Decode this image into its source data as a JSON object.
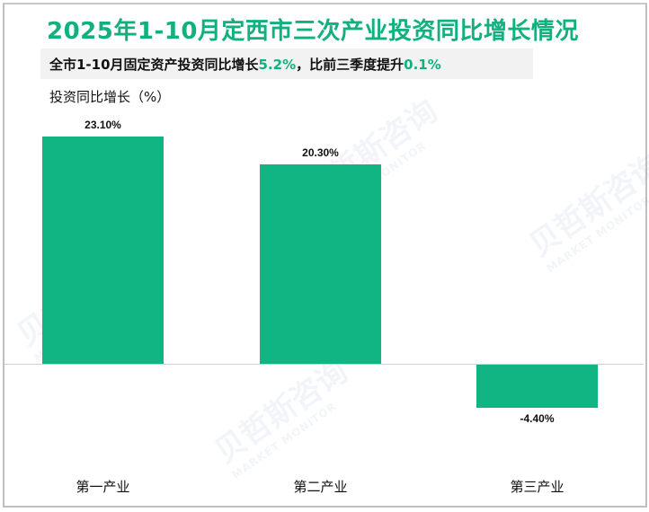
{
  "title": "2025年1-10月定西市三次产业投资同比增长情况",
  "subtitle": {
    "prefix": "全市1-10月固定资产投资同比增长",
    "value1": "5.2%",
    "middle": "，比前三季度提升",
    "value2": "0.1%"
  },
  "y_axis_label": "投资同比增长（%）",
  "watermark": {
    "cn": "贝哲斯咨询",
    "en": "MARKET MONITOR"
  },
  "colors": {
    "bar": "#10b583",
    "title": "#12b07e",
    "highlight": "#12b07e"
  },
  "bars": [
    {
      "category": "第一产业",
      "value": 23.1,
      "label": "23.10%"
    },
    {
      "category": "第二产业",
      "value": 20.3,
      "label": "20.30%"
    },
    {
      "category": "第三产业",
      "value": -4.4,
      "label": "-4.40%"
    }
  ],
  "chart_data": {
    "type": "bar",
    "title": "2025年1-10月定西市三次产业投资同比增长情况",
    "subtitle": "全市1-10月固定资产投资同比增长5.2%，比前三季度提升0.1%",
    "categories": [
      "第一产业",
      "第二产业",
      "第三产业"
    ],
    "values": [
      23.1,
      20.3,
      -4.4
    ],
    "data_labels": [
      "23.10%",
      "20.30%",
      "-4.40%"
    ],
    "xlabel": "",
    "ylabel": "投资同比增长（%）",
    "ylim": [
      -14,
      26
    ],
    "grid": false,
    "legend": null
  }
}
